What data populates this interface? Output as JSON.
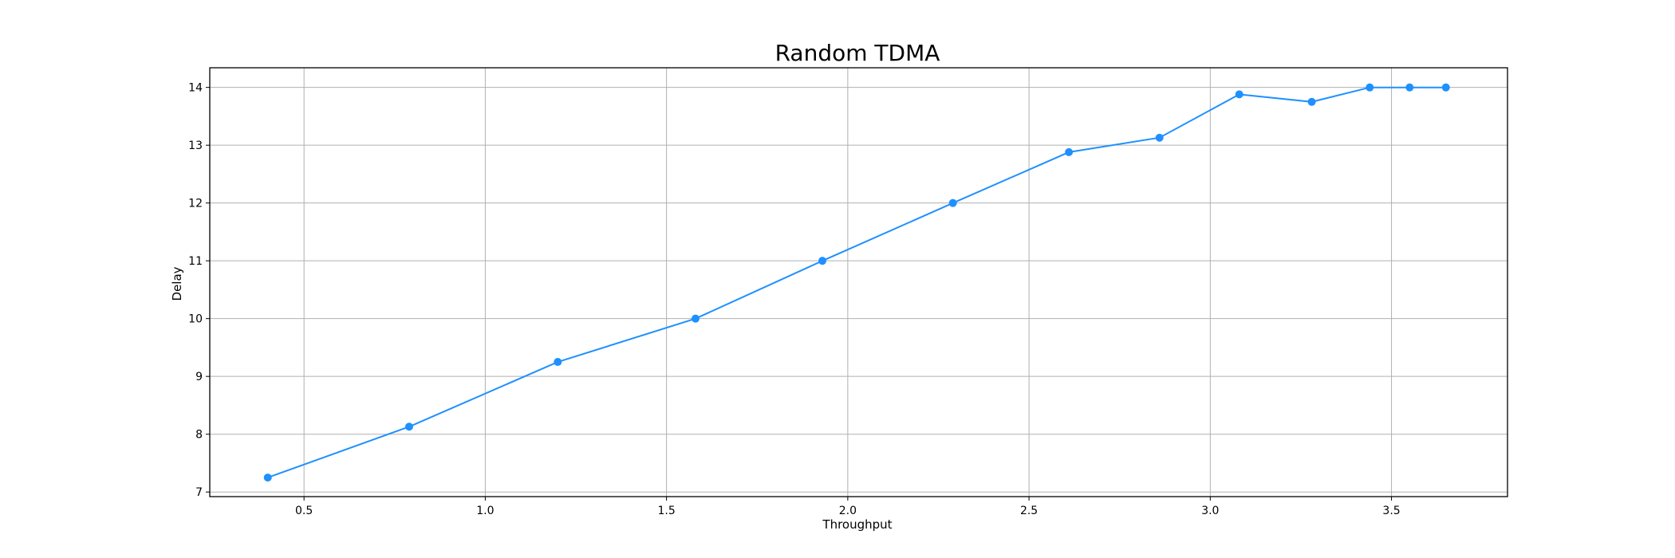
{
  "chart_data": {
    "type": "line",
    "title": "Random TDMA",
    "xlabel": "Throughput",
    "ylabel": "Delay",
    "xlim": [
      0.24,
      3.82
    ],
    "ylim": [
      6.92,
      14.34
    ],
    "xticks": [
      0.5,
      1.0,
      1.5,
      2.0,
      2.5,
      3.0,
      3.5
    ],
    "xtick_labels": [
      "0.5",
      "1.0",
      "1.5",
      "2.0",
      "2.5",
      "3.0",
      "3.5"
    ],
    "yticks": [
      7,
      8,
      9,
      10,
      11,
      12,
      13,
      14
    ],
    "ytick_labels": [
      "7",
      "8",
      "9",
      "10",
      "11",
      "12",
      "13",
      "14"
    ],
    "grid": true,
    "series": [
      {
        "color": "#1e90ff",
        "marker": "circle",
        "x": [
          0.4,
          0.79,
          1.2,
          1.58,
          1.93,
          2.29,
          2.61,
          2.86,
          3.08,
          3.28,
          3.44,
          3.55,
          3.65
        ],
        "y": [
          7.25,
          8.13,
          9.25,
          10.0,
          11.0,
          12.0,
          12.88,
          13.13,
          13.88,
          13.75,
          14.0,
          14.0,
          14.0
        ]
      }
    ]
  }
}
